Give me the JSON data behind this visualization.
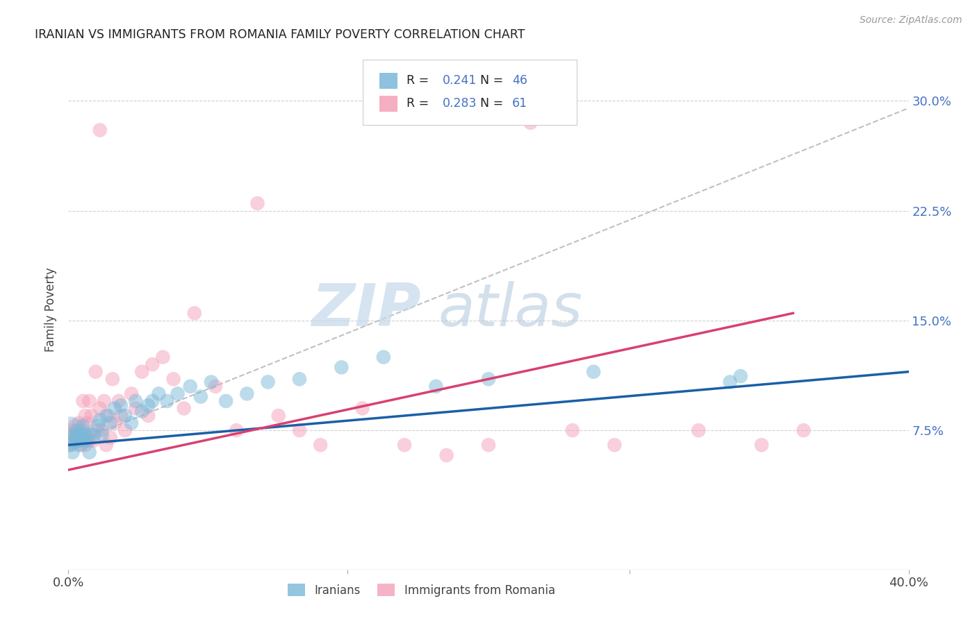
{
  "title": "IRANIAN VS IMMIGRANTS FROM ROMANIA FAMILY POVERTY CORRELATION CHART",
  "source": "Source: ZipAtlas.com",
  "ylabel": "Family Poverty",
  "ytick_labels": [
    "7.5%",
    "15.0%",
    "22.5%",
    "30.0%"
  ],
  "ytick_values": [
    0.075,
    0.15,
    0.225,
    0.3
  ],
  "xlim": [
    0.0,
    0.4
  ],
  "ylim": [
    -0.02,
    0.335
  ],
  "legend_label_1": "Iranians",
  "legend_label_2": "Immigrants from Romania",
  "R1": 0.241,
  "N1": 46,
  "R2": 0.283,
  "N2": 61,
  "color_blue": "#7ab8d9",
  "color_pink": "#f4a0b8",
  "color_blue_line": "#1a5fa8",
  "color_pink_line": "#d94070",
  "watermark_zip": "ZIP",
  "watermark_atlas": "atlas",
  "iranians_x": [
    0.001,
    0.002,
    0.003,
    0.003,
    0.004,
    0.004,
    0.005,
    0.005,
    0.006,
    0.007,
    0.007,
    0.008,
    0.009,
    0.01,
    0.01,
    0.012,
    0.014,
    0.015,
    0.016,
    0.018,
    0.02,
    0.022,
    0.025,
    0.027,
    0.03,
    0.032,
    0.035,
    0.038,
    0.04,
    0.043,
    0.047,
    0.052,
    0.058,
    0.063,
    0.068,
    0.075,
    0.085,
    0.095,
    0.11,
    0.13,
    0.15,
    0.175,
    0.2,
    0.25,
    0.315,
    0.32
  ],
  "iranians_y": [
    0.065,
    0.06,
    0.072,
    0.068,
    0.07,
    0.075,
    0.068,
    0.072,
    0.065,
    0.078,
    0.068,
    0.072,
    0.068,
    0.072,
    0.06,
    0.072,
    0.078,
    0.082,
    0.072,
    0.085,
    0.08,
    0.09,
    0.092,
    0.085,
    0.08,
    0.095,
    0.088,
    0.092,
    0.095,
    0.1,
    0.095,
    0.1,
    0.105,
    0.098,
    0.108,
    0.095,
    0.1,
    0.108,
    0.11,
    0.118,
    0.125,
    0.105,
    0.11,
    0.115,
    0.108,
    0.112
  ],
  "iranians_size_big": [
    0.001,
    0.075,
    600
  ],
  "romania_x": [
    0.001,
    0.001,
    0.002,
    0.002,
    0.003,
    0.003,
    0.004,
    0.004,
    0.005,
    0.005,
    0.006,
    0.006,
    0.007,
    0.007,
    0.008,
    0.008,
    0.009,
    0.009,
    0.01,
    0.01,
    0.011,
    0.012,
    0.013,
    0.014,
    0.015,
    0.015,
    0.016,
    0.017,
    0.018,
    0.019,
    0.02,
    0.021,
    0.022,
    0.024,
    0.025,
    0.027,
    0.03,
    0.032,
    0.035,
    0.038,
    0.04,
    0.045,
    0.05,
    0.055,
    0.06,
    0.07,
    0.08,
    0.09,
    0.1,
    0.11,
    0.12,
    0.14,
    0.16,
    0.18,
    0.2,
    0.22,
    0.24,
    0.26,
    0.3,
    0.33,
    0.35
  ],
  "romania_y": [
    0.065,
    0.072,
    0.068,
    0.075,
    0.07,
    0.078,
    0.068,
    0.072,
    0.065,
    0.08,
    0.068,
    0.072,
    0.095,
    0.075,
    0.065,
    0.085,
    0.08,
    0.07,
    0.068,
    0.095,
    0.085,
    0.068,
    0.115,
    0.075,
    0.28,
    0.09,
    0.075,
    0.095,
    0.065,
    0.085,
    0.07,
    0.11,
    0.08,
    0.095,
    0.085,
    0.075,
    0.1,
    0.09,
    0.115,
    0.085,
    0.12,
    0.125,
    0.11,
    0.09,
    0.155,
    0.105,
    0.075,
    0.23,
    0.085,
    0.075,
    0.065,
    0.09,
    0.065,
    0.058,
    0.065,
    0.285,
    0.075,
    0.065,
    0.075,
    0.065,
    0.075
  ],
  "blue_line_x": [
    0.0,
    0.4
  ],
  "blue_line_y": [
    0.065,
    0.115
  ],
  "pink_line_x": [
    0.0,
    0.345
  ],
  "pink_line_y": [
    0.048,
    0.155
  ],
  "dash_line_x": [
    0.0,
    0.4
  ],
  "dash_line_y": [
    0.065,
    0.295
  ]
}
